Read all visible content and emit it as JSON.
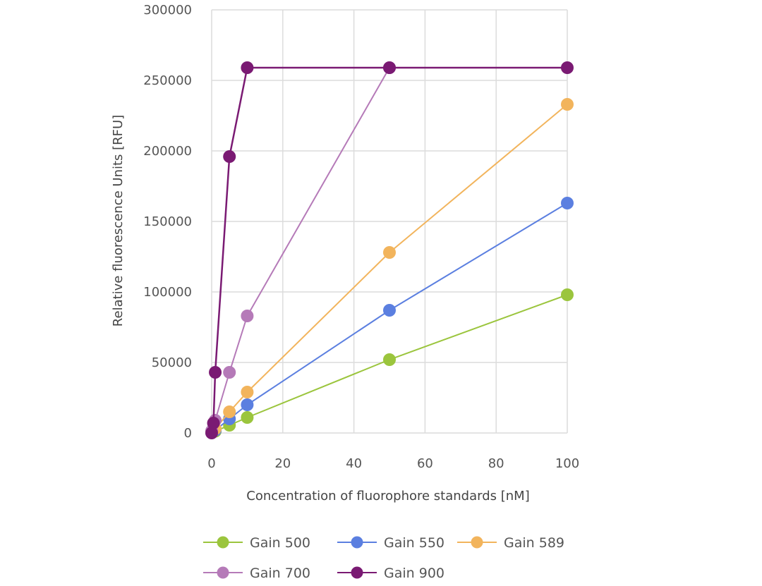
{
  "chart_data": {
    "type": "line",
    "title": "",
    "xlabel": "Concentration of fluorophore standards [nM]",
    "ylabel": "Relative fluorescence Units [RFU]",
    "xlim": [
      0,
      100
    ],
    "ylim": [
      0,
      300000
    ],
    "xticks": [
      0,
      20,
      40,
      60,
      80,
      100
    ],
    "yticks": [
      0,
      50000,
      100000,
      150000,
      200000,
      250000,
      300000
    ],
    "grid": true,
    "legend_position": "bottom",
    "series": [
      {
        "name": "Gain 500",
        "color": "#9bc53d",
        "x": [
          0,
          1,
          5,
          10,
          50,
          100
        ],
        "y": [
          300,
          1200,
          5500,
          11000,
          52000,
          98000
        ]
      },
      {
        "name": "Gain 550",
        "color": "#5b7fe0",
        "x": [
          0,
          1,
          5,
          10,
          50,
          100
        ],
        "y": [
          500,
          2000,
          10000,
          20000,
          87000,
          163000
        ]
      },
      {
        "name": "Gain 589",
        "color": "#f2b45c",
        "x": [
          0,
          1,
          5,
          10,
          50,
          100
        ],
        "y": [
          800,
          3000,
          15000,
          29000,
          128000,
          233000
        ]
      },
      {
        "name": "Gain 700",
        "color": "#b57ab8",
        "x": [
          0,
          1,
          5,
          10,
          50
        ],
        "y": [
          1500,
          9000,
          43000,
          83000,
          259000
        ]
      },
      {
        "name": "Gain 900",
        "color": "#7a1a73",
        "x": [
          0,
          0.5,
          1,
          5,
          10,
          50,
          100
        ],
        "y": [
          0,
          7000,
          43000,
          196000,
          259000,
          259000,
          259000
        ]
      }
    ]
  }
}
